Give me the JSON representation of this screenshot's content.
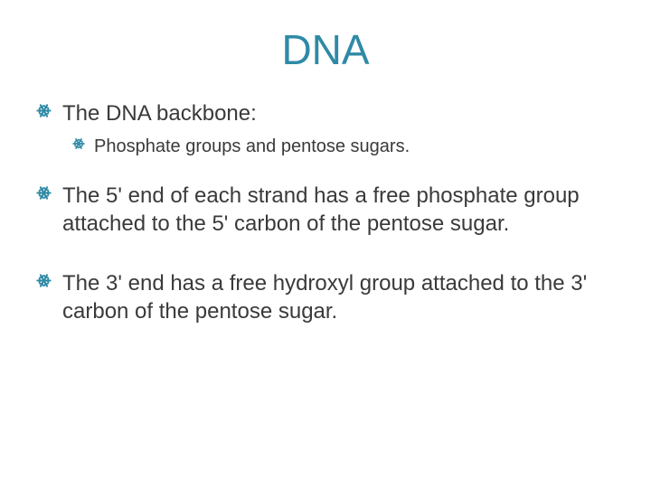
{
  "title": {
    "text": "DNA",
    "color": "#2f8aa6",
    "fontsize": 46
  },
  "body_color": "#3a3a3a",
  "bullets": [
    {
      "level": 1,
      "text": "The DNA backbone:",
      "gap_before": 0
    },
    {
      "level": 2,
      "text": "Phosphate groups and pentose sugars.",
      "gap_before": 0
    },
    {
      "level": 1,
      "text": "The 5' end of each strand has a free phosphate group attached to the 5' carbon of the pentose sugar.",
      "gap_before": 18
    },
    {
      "level": 1,
      "text": "The 3' end has a free hydroxyl group attached to the 3' carbon  of the pentose sugar.",
      "gap_before": 26
    }
  ],
  "bullet_glyph": {
    "color": "#2f8aa6",
    "l1_size": 17,
    "l2_size": 14
  }
}
